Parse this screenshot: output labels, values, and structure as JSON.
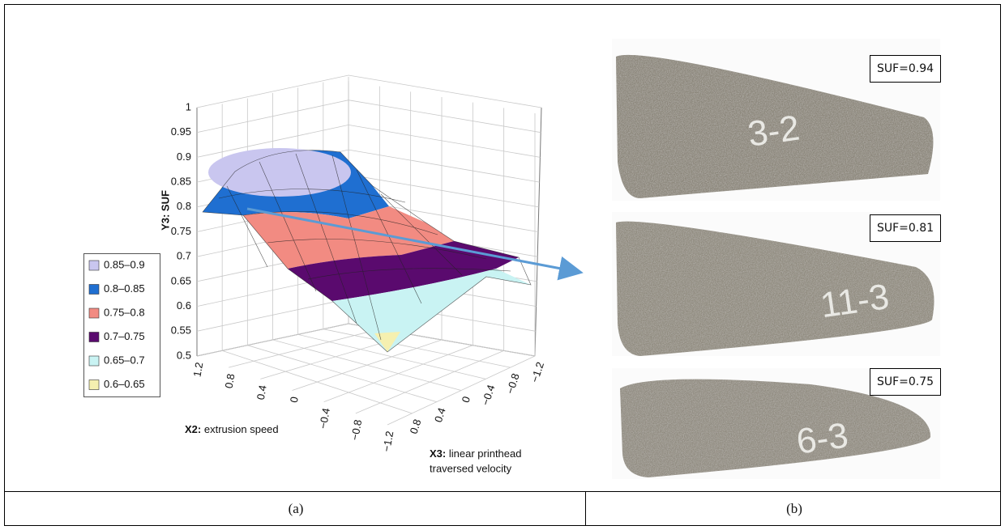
{
  "panel_a": {
    "z_axis_label": "Y3: SUF",
    "z_ticks": [
      0.5,
      0.55,
      0.6,
      0.65,
      0.7,
      0.75,
      0.8,
      0.85,
      0.9,
      0.95,
      1
    ],
    "x2_label_bold": "X2:",
    "x2_label": "extrusion speed",
    "x2_ticks": [
      1.2,
      0.8,
      0.4,
      0,
      {
        "value": -0.4,
        "label": "−0.4"
      },
      {
        "value": -0.8,
        "label": "−0.8"
      },
      {
        "value": -1.2,
        "label": "−1.2"
      }
    ],
    "x3_label_bold": "X3:",
    "x3_label_line1": "linear printhead",
    "x3_label_line2": "traversed velocity",
    "x3_ticks": [
      0.8,
      0.4,
      0,
      {
        "value": -0.4,
        "label": "−0.4"
      },
      {
        "value": -0.8,
        "label": "−0.8"
      },
      {
        "value": -1.2,
        "label": "−1.2"
      }
    ],
    "legend": [
      {
        "label": "0.85–0.9",
        "color": "#c9c6ef"
      },
      {
        "label": "0.8–0.85",
        "color": "#1f6fd1"
      },
      {
        "label": "0.75–0.8",
        "color": "#f28b82"
      },
      {
        "label": "0.7–0.75",
        "color": "#5a0a6e"
      },
      {
        "label": "0.65–0.7",
        "color": "#c9f3f3"
      },
      {
        "label": "0.6–0.65",
        "color": "#f5f0b0"
      }
    ],
    "caption": "(a)"
  },
  "panel_b": {
    "specimens": [
      {
        "suf_label": "SUF=0.94",
        "marking": "3-2"
      },
      {
        "suf_label": "SUF=0.81",
        "marking": "11-3"
      },
      {
        "suf_label": "SUF=0.75",
        "marking": "6-3"
      }
    ],
    "caption": "(b)"
  }
}
